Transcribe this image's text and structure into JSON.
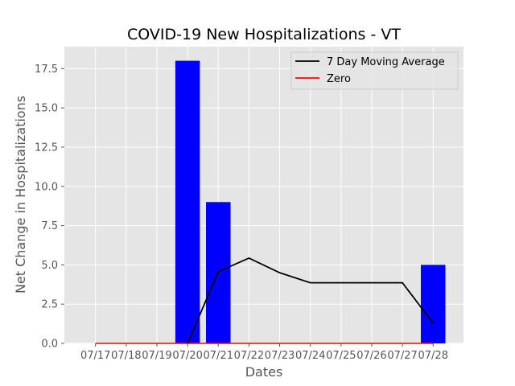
{
  "chart_data": {
    "type": "bar",
    "title": "COVID-19 New Hospitalizations - VT",
    "xlabel": "Dates",
    "ylabel": "Net Change in Hospitalizations",
    "categories": [
      "07/17",
      "07/18",
      "07/19",
      "07/20",
      "07/21",
      "07/22",
      "07/23",
      "07/24",
      "07/25",
      "07/26",
      "07/27",
      "07/28"
    ],
    "bars": [
      {
        "x": "07/20",
        "value": 18
      },
      {
        "x": "07/21",
        "value": 9
      },
      {
        "x": "07/28",
        "value": 5
      }
    ],
    "bar_color": "#0000ff",
    "series": [
      {
        "name": "7 Day Moving Average",
        "type": "line",
        "color": "#000000",
        "points": [
          {
            "x": "07/20",
            "y": 0
          },
          {
            "x": "07/21",
            "y": 4.57
          },
          {
            "x": "07/22",
            "y": 5.43
          },
          {
            "x": "07/23",
            "y": 4.5
          },
          {
            "x": "07/24",
            "y": 3.86
          },
          {
            "x": "07/25",
            "y": 3.86
          },
          {
            "x": "07/26",
            "y": 3.86
          },
          {
            "x": "07/27",
            "y": 3.86
          },
          {
            "x": "07/28",
            "y": 1.29
          }
        ]
      },
      {
        "name": "Zero",
        "type": "line",
        "color": "#ff0000",
        "points": [
          {
            "x": "07/17",
            "y": 0
          },
          {
            "x": "07/28",
            "y": 0
          }
        ]
      }
    ],
    "ylim": [
      0,
      18.9
    ],
    "yticks": [
      0.0,
      2.5,
      5.0,
      7.5,
      10.0,
      12.5,
      15.0,
      17.5
    ],
    "ytick_labels": [
      "0.0",
      "2.5",
      "5.0",
      "7.5",
      "10.0",
      "12.5",
      "15.0",
      "17.5"
    ],
    "grid": true,
    "legend_position": "upper right",
    "background_color": "#e5e5e5"
  }
}
